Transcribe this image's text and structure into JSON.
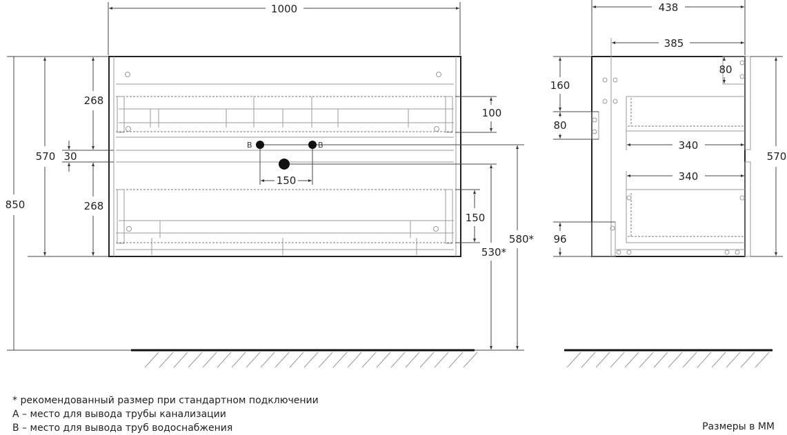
{
  "front_view": {
    "width": "1000",
    "height_total": "850",
    "height_body": "570",
    "drawer_top_height": "268",
    "drawer_bottom_height": "268",
    "gap": "30",
    "top_drawer_depth": "100",
    "bottom_drawer_depth": "150",
    "pipe_spacing": "150",
    "water_label": "В",
    "drain_height": "530*",
    "water_height": "580*"
  },
  "side_view": {
    "depth_total": "438",
    "depth_body": "385",
    "top_offset": "160",
    "bracket_height": "80",
    "top_right": "80",
    "drawer_top_depth": "340",
    "drawer_bottom_depth": "340",
    "bottom_offset": "96",
    "height": "570"
  },
  "notes": [
    "* рекомендованный размер при стандартном подключении",
    "А – место для вывода трубы канализации",
    "В – место для вывода труб водоснабжения"
  ],
  "units": "Размеры в ММ"
}
